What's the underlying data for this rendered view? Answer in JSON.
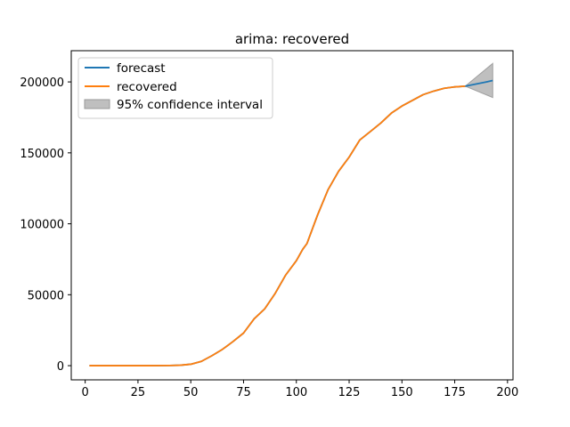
{
  "chart_data": {
    "type": "line",
    "title": "arima: recovered",
    "xlabel": "",
    "ylabel": "",
    "xlim": [
      -6.6,
      202.6
    ],
    "ylim": [
      -10000,
      222000
    ],
    "xticks": [
      0,
      25,
      50,
      75,
      100,
      125,
      150,
      175,
      200
    ],
    "yticks": [
      0,
      50000,
      100000,
      150000,
      200000
    ],
    "grid": false,
    "legend_position": "top-left",
    "legend": [
      "forecast",
      "recovered",
      "95% confidence interval"
    ],
    "series": [
      {
        "name": "forecast",
        "color": "#1f77b4",
        "x": [
          2,
          10,
          20,
          30,
          40,
          45,
          50,
          55,
          60,
          65,
          70,
          75,
          80,
          85,
          90,
          95,
          100,
          103,
          105,
          110,
          115,
          120,
          125,
          130,
          135,
          140,
          145,
          150,
          155,
          160,
          165,
          170,
          175,
          180,
          185,
          190,
          193
        ],
        "y": [
          0,
          0,
          0,
          0,
          100,
          300,
          1000,
          3000,
          7000,
          11500,
          17000,
          23000,
          33000,
          40000,
          51000,
          64000,
          74000,
          82000,
          86000,
          106000,
          124000,
          137000,
          147000,
          159000,
          165000,
          171000,
          178000,
          183000,
          187000,
          191000,
          193500,
          195500,
          196500,
          197000,
          198500,
          200000,
          201000
        ]
      },
      {
        "name": "recovered",
        "color": "#ff7f0e",
        "x": [
          2,
          10,
          20,
          30,
          40,
          45,
          50,
          55,
          60,
          65,
          70,
          75,
          80,
          85,
          90,
          95,
          100,
          103,
          105,
          110,
          115,
          120,
          125,
          130,
          135,
          140,
          145,
          150,
          155,
          160,
          165,
          170,
          175,
          180
        ],
        "y": [
          0,
          0,
          0,
          0,
          100,
          300,
          1000,
          3000,
          7000,
          11500,
          17000,
          23000,
          33000,
          40000,
          51000,
          64000,
          74000,
          82000,
          86000,
          106000,
          124000,
          137000,
          147000,
          159000,
          165000,
          171000,
          178000,
          183000,
          187000,
          191000,
          193500,
          195500,
          196500,
          197000
        ]
      }
    ],
    "confidence_interval": {
      "name": "95% confidence interval",
      "color": "#bfbfbf",
      "x": [
        180,
        193
      ],
      "lower": [
        197000,
        189000
      ],
      "upper": [
        197000,
        213000
      ]
    }
  }
}
